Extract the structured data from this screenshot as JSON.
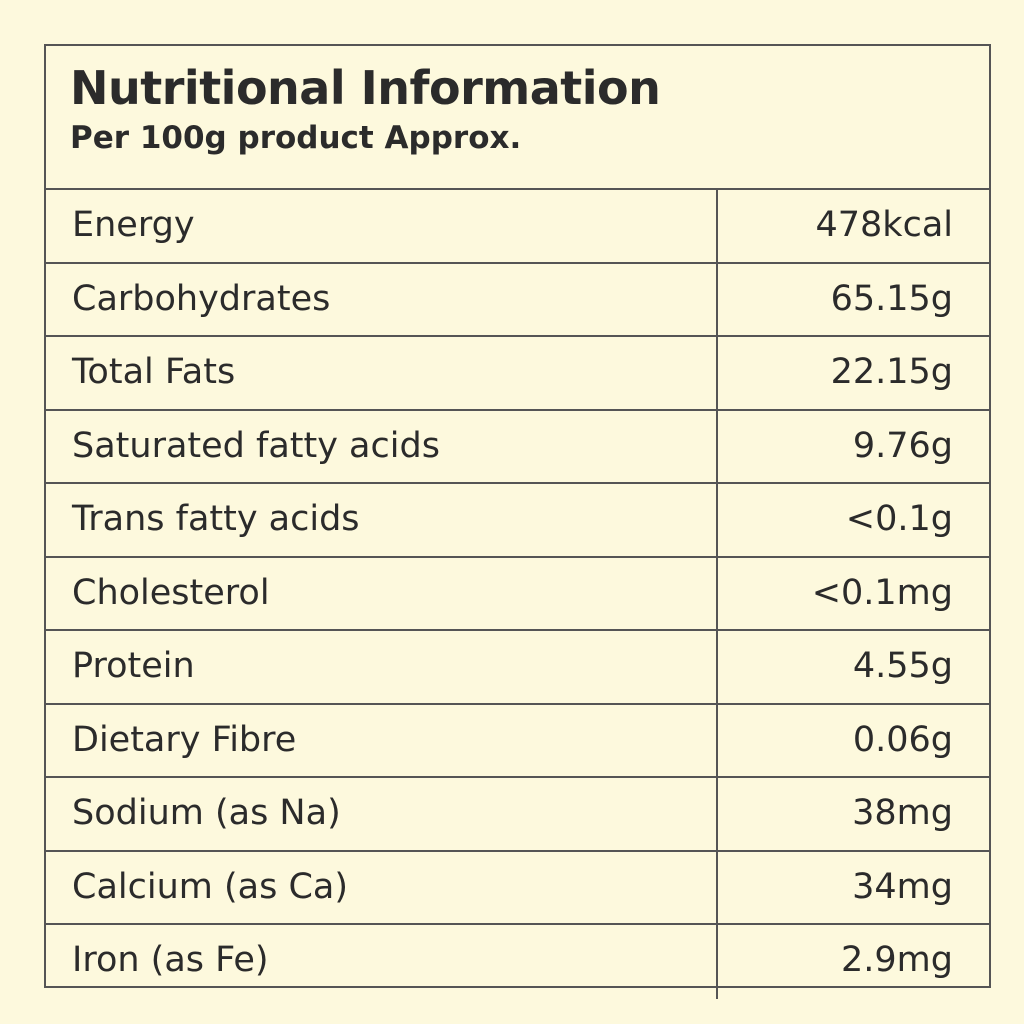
{
  "header": {
    "title": "Nutritional Information",
    "subtitle": "Per 100g product Approx."
  },
  "table": {
    "rows": [
      [
        "Energy",
        "478kcal"
      ],
      [
        "Carbohydrates",
        "65.15g"
      ],
      [
        "Total Fats",
        "22.15g"
      ],
      [
        "Saturated fatty acids",
        "9.76g"
      ],
      [
        "Trans fatty acids",
        "<0.1g"
      ],
      [
        "Cholesterol",
        "<0.1mg"
      ],
      [
        "Protein",
        "4.55g"
      ],
      [
        "Dietary Fibre",
        "0.06g"
      ],
      [
        "Sodium (as Na)",
        "38mg"
      ],
      [
        "Calcium (as Ca)",
        "34mg"
      ],
      [
        "Iron (as Fe)",
        "2.9mg"
      ]
    ]
  }
}
